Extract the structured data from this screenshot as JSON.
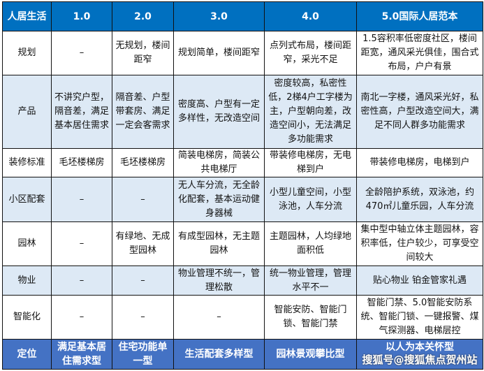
{
  "header": [
    "人居生活",
    "1.0",
    "2.0",
    "3.0",
    "4.0",
    "5.0国际人居范本"
  ],
  "rows": [
    {
      "label": "规划",
      "cells": [
        "–",
        "无规划，楼间距窄",
        "规划简单，楼间距窄",
        "点列式布局，楼间距窄，采光不足",
        "1.5容积率低密度社区，楼间距宽，通风采光俱佳，围合式布局，户户有景"
      ]
    },
    {
      "label": "产品",
      "cells": [
        "不讲究户型，隔音差，满足基本居住需求",
        "隔音差、户型带套房、满足一定会客需求",
        "密度高、户型有一定多样性，无改造空间",
        "密度较高，私密性低，2梯4户工字楼为主，户型朝向差，改造空间小，无法满足多功能需求",
        "南北一字楼，通风采光好，私密性高，户型改造空间大，满足不同人群多功能需求"
      ]
    },
    {
      "label": "装修标准",
      "cells": [
        "毛坯楼梯房",
        "毛坯楼梯房",
        "简装电梯房，简装公共电梯厅",
        "带装修电梯房，无电梯到户",
        "带装修电梯房，电梯到户"
      ]
    },
    {
      "label": "小区配套",
      "cells": [
        "–",
        "–",
        "无人车分流，无全龄化配套，基本运动健身器械",
        "小型儿童空间，小型泳池，人车分流",
        "全龄陪护系统，双泳池，约470㎡儿童乐园，人车分流"
      ]
    },
    {
      "label": "园林",
      "cells": [
        "–",
        "有绿地、无成型园林",
        "有成型园林，无主题园林",
        "主题园林，人均绿地面积低",
        "集中型中轴立体主题园林，容积率低，住户较少，可享受空间较大"
      ]
    },
    {
      "label": "物业",
      "cells": [
        "–",
        "–",
        "物业管理不统一，管理松散",
        "统一物业管理，管理水平不一",
        "贴心物业 铂金管家礼遇"
      ]
    },
    {
      "label": "智能化",
      "cells": [
        "–",
        "–",
        "–",
        "智能安防、智能门锁、智能门禁",
        "智能门禁、5.0智能安防系统、智能门锁、一键报警、煤气探测器、电梯层控"
      ]
    }
  ],
  "footer": [
    "定位",
    "满足基本居住需求型",
    "住宅功能单一型",
    "生活配套多样型",
    "园林景观攀比型",
    "以人为本关怀型"
  ],
  "watermark": "搜狐号@搜狐焦点贺州站",
  "colors": {
    "header": "#0070c0",
    "light_row": "#dde9f5",
    "footer": "#4472c4"
  }
}
